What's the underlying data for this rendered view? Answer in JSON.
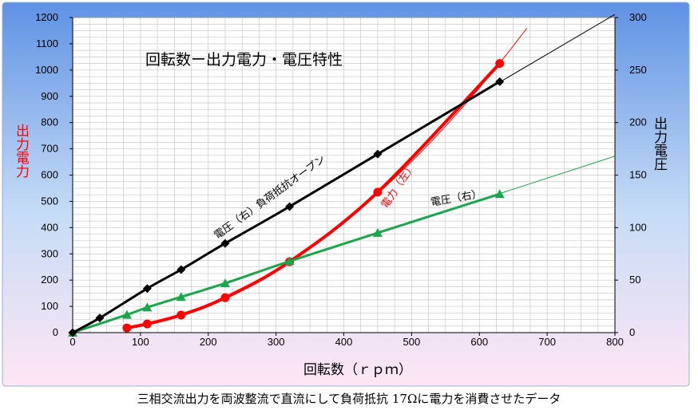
{
  "caption": "三相交流出力を両波整流で直流にして負荷抵抗 17Ωに電力を消費させたデータ",
  "chart_data": {
    "type": "line",
    "title": "回転数ー出力電力・電圧特性",
    "xlabel": "回転数（ｒｐｍ）",
    "ylabel_left": "出力電力",
    "ylabel_right": "出力電圧",
    "xlim": [
      0,
      800
    ],
    "ylim_left": [
      0,
      1200
    ],
    "ylim_right": [
      0,
      300
    ],
    "x_ticks": [
      "0",
      "100",
      "200",
      "300",
      "400",
      "500",
      "600",
      "700",
      "800"
    ],
    "y_left_ticks": [
      "0",
      "100",
      "200",
      "300",
      "400",
      "500",
      "600",
      "700",
      "800",
      "900",
      "1000",
      "1100",
      "1200"
    ],
    "y_right_ticks": [
      "0",
      "50",
      "100",
      "150",
      "200",
      "250",
      "300"
    ],
    "grid": true,
    "series": [
      {
        "name": "電力（左）",
        "axis": "left",
        "color": "#ff0000",
        "marker": "circle",
        "x": [
          80,
          110,
          160,
          225,
          320,
          450,
          630
        ],
        "y": [
          18,
          33,
          67,
          133,
          270,
          535,
          1025
        ],
        "trend_to": 670
      },
      {
        "name": "電圧（右）",
        "axis": "right",
        "color": "#1aa64a",
        "marker": "triangle",
        "x": [
          0,
          80,
          110,
          160,
          225,
          320,
          450,
          630
        ],
        "y": [
          0,
          17,
          24,
          34,
          47,
          68,
          95,
          132
        ],
        "trend_to": 800
      },
      {
        "name": "電圧（右）負荷抵抗オープン",
        "axis": "right",
        "color": "#000000",
        "marker": "diamond",
        "x": [
          0,
          40,
          110,
          160,
          225,
          320,
          450,
          630
        ],
        "y": [
          0,
          14,
          42,
          60,
          85,
          120,
          170,
          239
        ],
        "trend_to": 800
      }
    ],
    "annotations": [
      "電圧（右）負荷抵抗オープン",
      "電力（左）",
      "電圧（右）"
    ]
  }
}
